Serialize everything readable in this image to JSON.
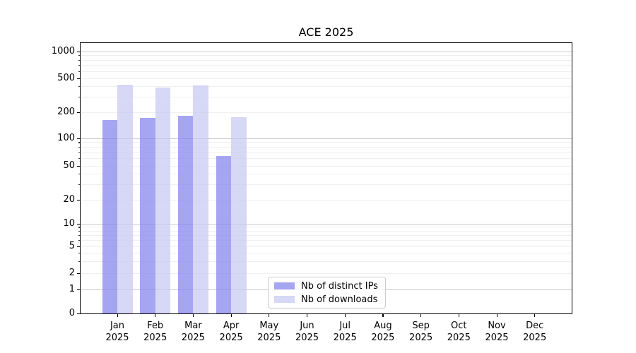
{
  "chart_data": {
    "type": "bar",
    "title": "ACE 2025",
    "year_label": "2025",
    "categories": [
      "Jan",
      "Feb",
      "Mar",
      "Apr",
      "May",
      "Jun",
      "Jul",
      "Aug",
      "Sep",
      "Oct",
      "Nov",
      "Dec"
    ],
    "yscale": "log (symlog, zero shown at baseline)",
    "yticks": [
      0,
      1,
      2,
      5,
      10,
      20,
      50,
      100,
      200,
      500,
      1000
    ],
    "ylim": [
      0,
      1250
    ],
    "grid": true,
    "legend_position": "bottom-center",
    "series": [
      {
        "name": "Nb of distinct IPs",
        "color": "#8282eb",
        "alpha": 0.72,
        "values": [
          162,
          172,
          181,
          64,
          null,
          null,
          null,
          null,
          null,
          null,
          null,
          null
        ]
      },
      {
        "name": "Nb of downloads",
        "color": "#c8c8f2",
        "alpha": 0.72,
        "values": [
          420,
          390,
          415,
          175,
          null,
          null,
          null,
          null,
          null,
          null,
          null,
          null
        ]
      }
    ]
  }
}
